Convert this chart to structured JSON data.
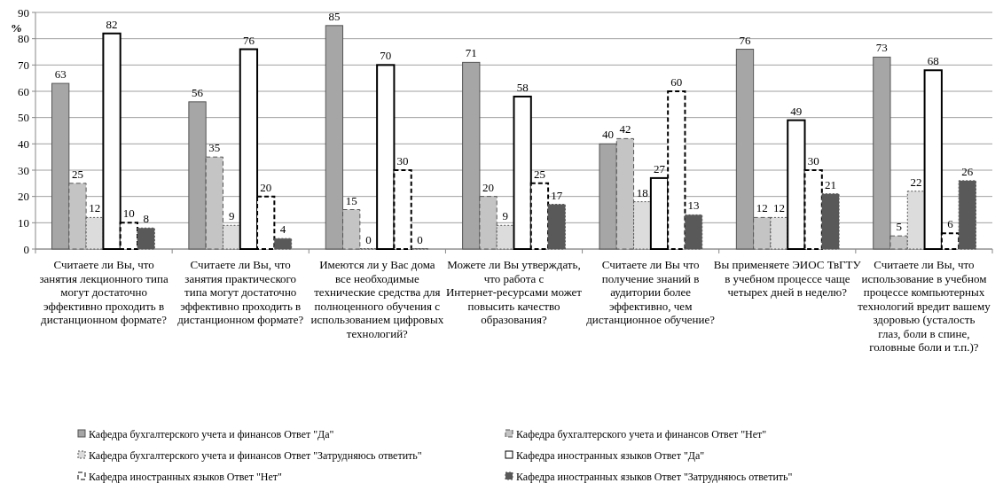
{
  "chart_data": {
    "type": "bar",
    "ylabel": "%",
    "categories": [
      "Считаете ли Вы, что занятия лекционного типа могут достаточно эффективно проходить в дистанционном формате?",
      "Считаете ли Вы, что занятия практического типа могут достаточно эффективно проходить в дистанционном формате?",
      "Имеются ли у Вас дома все необходимые технические средства для полноценного обучения с использованием цифровых технологий?",
      "Можете ли Вы утверждать, что работа с Интернет-ресурсами может повысить качество образования?",
      "Считаете ли Вы что получение знаний в аудитории более эффективно, чем дистанционное обучение?",
      "Вы применяете ЭИОС ТвГТУ в учебном процессе чаще четырех дней в неделю?",
      "Считаете ли Вы, что использование в учебном процессе компьютерных технологий вредит вашему здоровью (усталость глаз, боли в спине, головные боли и т.п.)?"
    ],
    "series": [
      {
        "name": "Кафедра бухгалтерского учета и финансов Ответ \"Да\"",
        "color": "#a6a6a6",
        "line_style": "solid",
        "values": [
          63,
          56,
          85,
          71,
          40,
          76,
          73
        ]
      },
      {
        "name": "Кафедра бухгалтерского учета и финансов Ответ \"Нет\"",
        "color": "#c4c4c4",
        "line_style": "dashed",
        "values": [
          25,
          35,
          15,
          20,
          42,
          12,
          5
        ]
      },
      {
        "name": "Кафедра бухгалтерского учета и финансов Ответ \"Затрудняюсь ответить\"",
        "color": "#dcdcdc",
        "line_style": "dotted",
        "values": [
          12,
          9,
          0,
          9,
          18,
          12,
          22
        ]
      },
      {
        "name": "Кафедра иностранных языков Ответ \"Да\"",
        "color": "#ffffff",
        "line_style": "solid",
        "values": [
          82,
          76,
          70,
          58,
          27,
          49,
          68
        ]
      },
      {
        "name": "Кафедра иностранных языков Ответ \"Нет\"",
        "color": "#ffffff",
        "line_style": "dashed",
        "values": [
          10,
          20,
          30,
          25,
          60,
          30,
          6
        ]
      },
      {
        "name": "Кафедра иностранных языков Ответ \"Затрудняюсь ответить\"",
        "color": "#595959",
        "line_style": "dotted",
        "values": [
          8,
          4,
          0,
          17,
          13,
          21,
          26
        ]
      }
    ],
    "ylim": [
      0,
      90
    ],
    "yticks": [
      0,
      10,
      20,
      30,
      40,
      50,
      60,
      70,
      80,
      90
    ],
    "grid": "y",
    "legend": "bottom",
    "data_labels": true
  }
}
